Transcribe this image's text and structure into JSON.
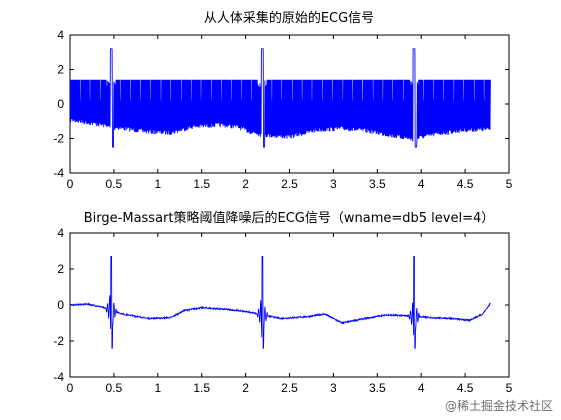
{
  "chart_data": [
    {
      "type": "line",
      "title": "从人体采集的原始的ECG信号",
      "xlim": [
        0,
        5
      ],
      "ylim": [
        -4,
        4
      ],
      "xticks": [
        "0",
        "0.5",
        "1",
        "1.5",
        "2",
        "2.5",
        "3",
        "3.5",
        "4",
        "4.5",
        "5"
      ],
      "yticks": [
        "4",
        "2",
        "0",
        "-2",
        "-4"
      ],
      "series": [
        {
          "color": "#0000ff",
          "kind": "noisy",
          "envelope_top": 1.4,
          "baseline": [
            [
              0,
              -0.8
            ],
            [
              0.3,
              -1.05
            ],
            [
              0.6,
              -1.3
            ],
            [
              0.9,
              -1.5
            ],
            [
              1.15,
              -1.55
            ],
            [
              1.4,
              -1.2
            ],
            [
              1.7,
              -1.1
            ],
            [
              1.9,
              -1.2
            ],
            [
              2.05,
              -1.5
            ],
            [
              2.25,
              -1.7
            ],
            [
              2.5,
              -1.8
            ],
            [
              2.8,
              -1.4
            ],
            [
              3.1,
              -1.3
            ],
            [
              3.4,
              -1.45
            ],
            [
              3.7,
              -1.75
            ],
            [
              3.9,
              -1.9
            ],
            [
              4.2,
              -1.6
            ],
            [
              4.5,
              -1.4
            ],
            [
              4.75,
              -1.35
            ]
          ],
          "beats": [
            0.47,
            2.19,
            3.92
          ],
          "beat_peak": 3.2,
          "beat_trough": -2.5,
          "x_end": 4.79
        }
      ]
    },
    {
      "type": "line",
      "title": "Birge-Massart策略阈值降噪后的ECG信号（wname=db5 level=4）",
      "xlim": [
        0,
        5
      ],
      "ylim": [
        -4,
        4
      ],
      "xticks": [
        "0",
        "0.5",
        "1",
        "1.5",
        "2",
        "2.5",
        "3",
        "3.5",
        "4",
        "4.5",
        "5"
      ],
      "yticks": [
        "4",
        "2",
        "0",
        "-2",
        "-4"
      ],
      "series": [
        {
          "color": "#0000ff",
          "kind": "clean",
          "baseline": [
            [
              0,
              0.0
            ],
            [
              0.2,
              0.05
            ],
            [
              0.35,
              -0.1
            ],
            [
              0.6,
              -0.5
            ],
            [
              0.9,
              -0.75
            ],
            [
              1.15,
              -0.7
            ],
            [
              1.3,
              -0.3
            ],
            [
              1.5,
              -0.15
            ],
            [
              1.8,
              -0.25
            ],
            [
              2.05,
              -0.4
            ],
            [
              2.4,
              -0.75
            ],
            [
              2.7,
              -0.65
            ],
            [
              2.9,
              -0.5
            ],
            [
              3.1,
              -1.0
            ],
            [
              3.3,
              -0.8
            ],
            [
              3.6,
              -0.55
            ],
            [
              3.85,
              -0.6
            ],
            [
              4.1,
              -0.7
            ],
            [
              4.35,
              -0.75
            ],
            [
              4.55,
              -0.85
            ],
            [
              4.7,
              -0.5
            ],
            [
              4.79,
              0.1
            ]
          ],
          "beats": [
            0.47,
            2.19,
            3.92
          ],
          "beat_peak": 2.7,
          "beat_trough": -2.4,
          "x_end": 4.79
        }
      ]
    }
  ],
  "watermark": "@稀土掘金技术社区"
}
